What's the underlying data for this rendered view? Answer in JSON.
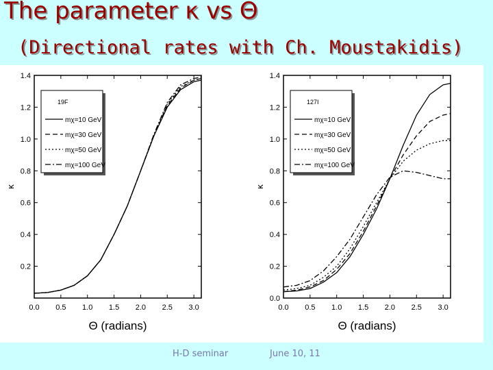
{
  "slide": {
    "title": "The parameter κ vs Θ",
    "subtitle": "(Directional rates with Ch. Moustakidis)",
    "footer_left": "H-D seminar",
    "footer_right": "June 10, 11",
    "title_color": "#990000",
    "background_color": "#ccffff"
  },
  "chart_data": [
    {
      "type": "line",
      "panel": "left",
      "target_label": "19F",
      "xlabel": "Θ (radians)",
      "ylabel": "κ",
      "xlim": [
        0.0,
        3.14
      ],
      "ylim": [
        0.0,
        1.4
      ],
      "xticks": [
        "0.0",
        "0.5",
        "1.0",
        "1.5",
        "2.0",
        "2.5",
        "3.0"
      ],
      "yticks": [
        "0.2",
        "0.4",
        "0.6",
        "0.8",
        "1.0",
        "1.2",
        "1.4"
      ],
      "legend_position": "top-left",
      "x": [
        0.0,
        0.25,
        0.5,
        0.75,
        1.0,
        1.25,
        1.5,
        1.75,
        2.0,
        2.25,
        2.5,
        2.75,
        3.0,
        3.14
      ],
      "series": [
        {
          "name": "mχ=10 GeV",
          "style": "solid",
          "values": [
            0.03,
            0.035,
            0.05,
            0.08,
            0.14,
            0.24,
            0.4,
            0.58,
            0.8,
            1.02,
            1.2,
            1.31,
            1.36,
            1.37
          ]
        },
        {
          "name": "mχ=30 GeV",
          "style": "dashed",
          "values": [
            0.03,
            0.035,
            0.05,
            0.08,
            0.14,
            0.24,
            0.4,
            0.58,
            0.8,
            1.02,
            1.21,
            1.32,
            1.37,
            1.38
          ]
        },
        {
          "name": "mχ=50 GeV",
          "style": "dotted",
          "values": [
            0.03,
            0.035,
            0.05,
            0.08,
            0.14,
            0.24,
            0.4,
            0.58,
            0.8,
            1.02,
            1.22,
            1.33,
            1.37,
            1.38
          ]
        },
        {
          "name": "mχ=100 GeV",
          "style": "dashdot",
          "values": [
            0.03,
            0.035,
            0.05,
            0.08,
            0.14,
            0.24,
            0.4,
            0.58,
            0.8,
            1.03,
            1.23,
            1.34,
            1.38,
            1.39
          ]
        }
      ]
    },
    {
      "type": "line",
      "panel": "right",
      "target_label": "127I",
      "xlabel": "Θ (radians)",
      "ylabel": "κ",
      "xlim": [
        0.0,
        3.14
      ],
      "ylim": [
        0.0,
        1.4
      ],
      "xticks": [
        "0.0",
        "0.5",
        "1.0",
        "1.5",
        "2.0",
        "2.5",
        "3.0"
      ],
      "yticks": [
        "0.0",
        "0.2",
        "0.4",
        "0.6",
        "0.8",
        "1.0",
        "1.2",
        "1.4"
      ],
      "legend_position": "top-left",
      "x": [
        0.0,
        0.25,
        0.5,
        0.75,
        1.0,
        1.25,
        1.5,
        1.75,
        2.0,
        2.25,
        2.5,
        2.75,
        3.0,
        3.14
      ],
      "series": [
        {
          "name": "mχ=10 GeV",
          "style": "solid",
          "values": [
            0.04,
            0.045,
            0.06,
            0.1,
            0.16,
            0.26,
            0.4,
            0.56,
            0.75,
            0.96,
            1.15,
            1.28,
            1.34,
            1.35
          ]
        },
        {
          "name": "mχ=30 GeV",
          "style": "dashed",
          "values": [
            0.04,
            0.05,
            0.07,
            0.11,
            0.18,
            0.28,
            0.42,
            0.58,
            0.75,
            0.9,
            1.02,
            1.11,
            1.15,
            1.16
          ]
        },
        {
          "name": "mχ=50 GeV",
          "style": "dotted",
          "values": [
            0.05,
            0.06,
            0.08,
            0.13,
            0.2,
            0.31,
            0.45,
            0.6,
            0.75,
            0.86,
            0.93,
            0.97,
            0.99,
            0.99
          ]
        },
        {
          "name": "mχ=100 GeV",
          "style": "dashdot",
          "values": [
            0.07,
            0.08,
            0.11,
            0.17,
            0.26,
            0.37,
            0.51,
            0.65,
            0.76,
            0.8,
            0.79,
            0.77,
            0.75,
            0.75
          ]
        }
      ]
    }
  ]
}
